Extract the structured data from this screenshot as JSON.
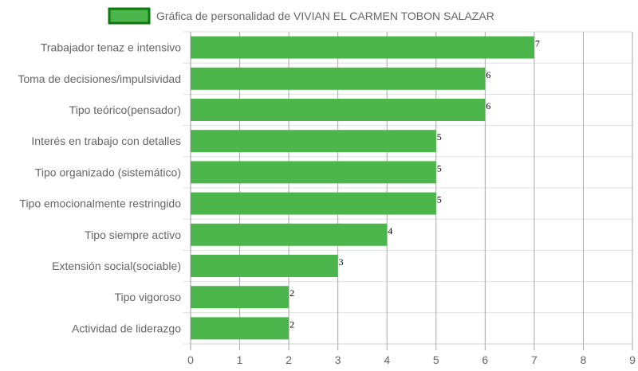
{
  "chart_data": {
    "type": "bar",
    "orientation": "horizontal",
    "categories": [
      "Trabajador tenaz e intensivo",
      "Toma de decisiones/impulsividad",
      "Tipo teórico(pensador)",
      "Interés en trabajo con detalles",
      "Tipo organizado (sistemático)",
      "Tipo emocionalmente restringido",
      "Tipo siempre activo",
      "Extensión social(sociable)",
      "Tipo vigoroso",
      "Actividad de liderazgo"
    ],
    "series": [
      {
        "name": "Gráfica de personalidad de VIVIAN EL CARMEN TOBON SALAZAR",
        "values": [
          7,
          6,
          6,
          5,
          5,
          5,
          4,
          3,
          2,
          2
        ],
        "color": "#4cb64c",
        "border_color": "#0c7a0c"
      }
    ],
    "xlim": [
      0,
      9
    ],
    "xticks": [
      "0",
      "1",
      "2",
      "3",
      "4",
      "5",
      "6",
      "7",
      "8",
      "9"
    ],
    "grid": true,
    "legend_position": "top",
    "data_labels": [
      "7",
      "6",
      "6",
      "5",
      "5",
      "5",
      "4",
      "3",
      "2",
      "2"
    ]
  }
}
